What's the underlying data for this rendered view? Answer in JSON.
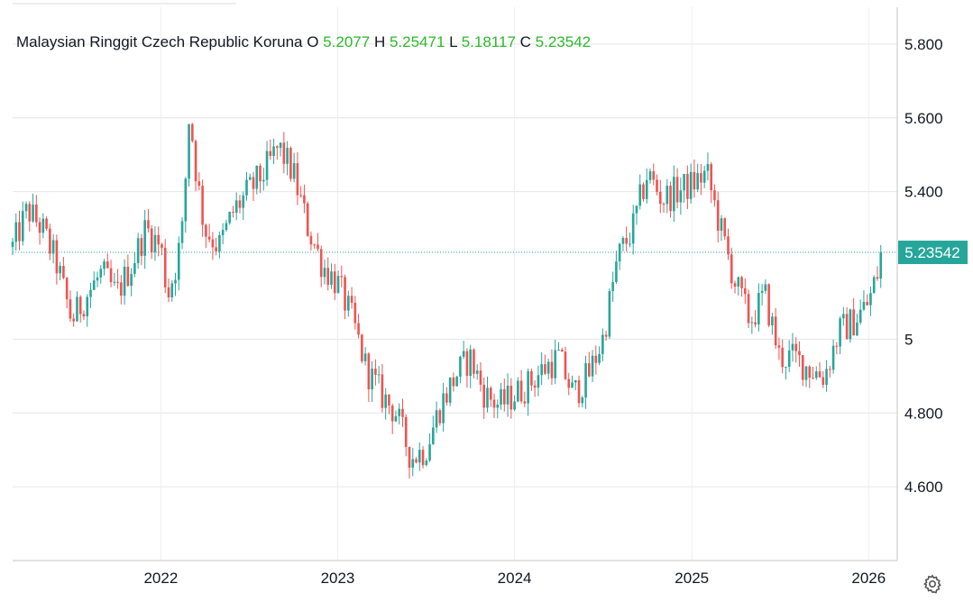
{
  "legend": {
    "symbol": "Malaysian Ringgit Czech Republic Koruna",
    "open_label": "O",
    "open": "5.2077",
    "high_label": "H",
    "high": "5.25471",
    "low_label": "L",
    "low": "5.18117",
    "close_label": "C",
    "close": "5.23542"
  },
  "last_price_label": "5.23542",
  "colors": {
    "up": "#26a69a",
    "down": "#ef5350",
    "ohlc_values": "#2db82d",
    "grid": "#e6e6e6"
  },
  "icons": {
    "settings": "gear-icon"
  },
  "chart_data": {
    "type": "candlestick",
    "title": "Malaysian Ringgit Czech Republic Koruna",
    "x_range": [
      "2021-03-01",
      "2026-03-01"
    ],
    "ylim": [
      4.4,
      5.9
    ],
    "y_ticks": [
      {
        "value": 5.8,
        "label": "5.800"
      },
      {
        "value": 5.6,
        "label": "5.600"
      },
      {
        "value": 5.4,
        "label": "5.400"
      },
      {
        "value": 5.0,
        "label": "5"
      },
      {
        "value": 4.8,
        "label": "4.800"
      },
      {
        "value": 4.6,
        "label": "4.600"
      }
    ],
    "x_ticks": [
      {
        "date": "2022-01-01",
        "label": "2022"
      },
      {
        "date": "2023-01-01",
        "label": "2023"
      },
      {
        "date": "2024-01-01",
        "label": "2024"
      },
      {
        "date": "2025-01-01",
        "label": "2025"
      },
      {
        "date": "2026-01-01",
        "label": "2026"
      }
    ],
    "grid": true,
    "last_price": 5.23542,
    "close_path": [
      [
        "2021-03-01",
        5.25
      ],
      [
        "2021-04-01",
        5.35
      ],
      [
        "2021-05-01",
        5.3
      ],
      [
        "2021-06-01",
        5.2
      ],
      [
        "2021-07-01",
        5.05
      ],
      [
        "2021-08-01",
        5.12
      ],
      [
        "2021-09-01",
        5.18
      ],
      [
        "2021-10-01",
        5.12
      ],
      [
        "2021-11-01",
        5.2
      ],
      [
        "2021-12-01",
        5.3
      ],
      [
        "2022-01-01",
        5.25
      ],
      [
        "2022-01-15",
        5.12
      ],
      [
        "2022-02-01",
        5.2
      ],
      [
        "2022-02-15",
        5.3
      ],
      [
        "2022-03-01",
        5.62
      ],
      [
        "2022-03-15",
        5.45
      ],
      [
        "2022-04-01",
        5.3
      ],
      [
        "2022-05-01",
        5.25
      ],
      [
        "2022-06-01",
        5.35
      ],
      [
        "2022-07-01",
        5.4
      ],
      [
        "2022-08-01",
        5.45
      ],
      [
        "2022-09-01",
        5.52
      ],
      [
        "2022-10-01",
        5.45
      ],
      [
        "2022-11-01",
        5.3
      ],
      [
        "2022-12-01",
        5.2
      ],
      [
        "2023-01-01",
        5.15
      ],
      [
        "2023-02-01",
        5.05
      ],
      [
        "2023-03-01",
        4.92
      ],
      [
        "2023-04-01",
        4.85
      ],
      [
        "2023-05-01",
        4.8
      ],
      [
        "2023-06-01",
        4.68
      ],
      [
        "2023-07-01",
        4.7
      ],
      [
        "2023-08-01",
        4.82
      ],
      [
        "2023-09-01",
        4.9
      ],
      [
        "2023-10-01",
        4.95
      ],
      [
        "2023-11-01",
        4.85
      ],
      [
        "2023-12-01",
        4.82
      ],
      [
        "2024-01-01",
        4.85
      ],
      [
        "2024-02-01",
        4.88
      ],
      [
        "2024-03-01",
        4.92
      ],
      [
        "2024-04-01",
        4.95
      ],
      [
        "2024-05-01",
        4.85
      ],
      [
        "2024-06-01",
        4.9
      ],
      [
        "2024-07-01",
        5.0
      ],
      [
        "2024-08-01",
        5.22
      ],
      [
        "2024-09-01",
        5.3
      ],
      [
        "2024-10-01",
        5.45
      ],
      [
        "2024-11-01",
        5.38
      ],
      [
        "2024-12-01",
        5.4
      ],
      [
        "2025-01-01",
        5.42
      ],
      [
        "2025-02-01",
        5.45
      ],
      [
        "2025-03-01",
        5.3
      ],
      [
        "2025-04-01",
        5.15
      ],
      [
        "2025-05-01",
        5.05
      ],
      [
        "2025-06-01",
        5.12
      ],
      [
        "2025-07-01",
        4.95
      ],
      [
        "2025-08-01",
        4.95
      ],
      [
        "2025-09-01",
        4.92
      ],
      [
        "2025-10-01",
        4.9
      ],
      [
        "2025-11-01",
        5.02
      ],
      [
        "2025-12-01",
        5.05
      ],
      [
        "2026-01-01",
        5.1
      ],
      [
        "2026-02-01",
        5.235
      ]
    ]
  }
}
